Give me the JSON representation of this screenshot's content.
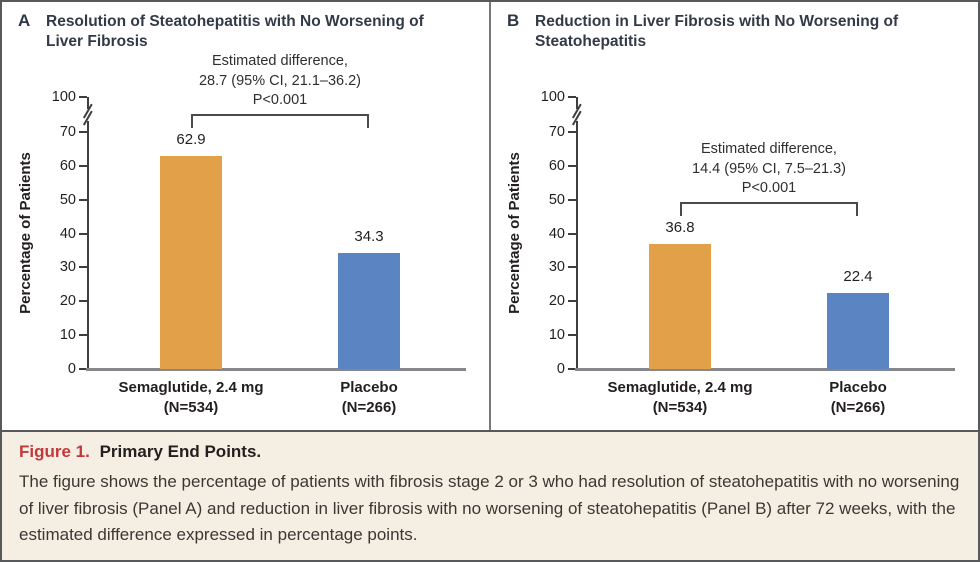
{
  "caption": {
    "label": "Figure 1.",
    "title": "Primary End Points.",
    "body": "The figure shows the percentage of patients with fibrosis stage 2 or 3 who had resolution of steatohepatitis with no worsening of liver fibrosis (Panel A) and reduction in liver fibrosis with no worsening of steatohepatitis (Panel B) after 72 weeks, with the estimated difference expressed in percentage points."
  },
  "colors": {
    "semaglutide_bar": "#e2a049",
    "placebo_bar": "#5b84c3",
    "caption_background": "#f5efe3",
    "figure_label_red": "#c2393b",
    "border_gray": "#58595b"
  },
  "chart_data": [
    {
      "type": "bar",
      "panel_label": "A",
      "title": "Resolution of Steatohepatitis with No Worsening of Liver Fibrosis",
      "categories": [
        [
          "Semaglutide, 2.4 mg",
          "(N=534)"
        ],
        [
          "Placebo",
          "(N=266)"
        ]
      ],
      "values": [
        62.9,
        34.3
      ],
      "value_labels": [
        "62.9",
        "34.3"
      ],
      "bar_colors": [
        "#e2a049",
        "#5b84c3"
      ],
      "ylabel": "Percentage of Patients",
      "yticks": [
        0,
        10,
        20,
        30,
        40,
        50,
        60,
        70,
        100
      ],
      "ylim": [
        0,
        100
      ],
      "axis_break_between": [
        70,
        100
      ],
      "grid": false,
      "annotation_lines": [
        "Estimated difference,",
        "28.7 (95% CI, 21.1–36.2)",
        "P<0.001"
      ]
    },
    {
      "type": "bar",
      "panel_label": "B",
      "title": "Reduction in Liver Fibrosis with No Worsening of Steatohepatitis",
      "categories": [
        [
          "Semaglutide, 2.4 mg",
          "(N=534)"
        ],
        [
          "Placebo",
          "(N=266)"
        ]
      ],
      "values": [
        36.8,
        22.4
      ],
      "value_labels": [
        "36.8",
        "22.4"
      ],
      "bar_colors": [
        "#e2a049",
        "#5b84c3"
      ],
      "ylabel": "Percentage of Patients",
      "yticks": [
        0,
        10,
        20,
        30,
        40,
        50,
        60,
        70,
        100
      ],
      "ylim": [
        0,
        100
      ],
      "axis_break_between": [
        70,
        100
      ],
      "grid": false,
      "annotation_lines": [
        "Estimated difference,",
        "14.4 (95% CI, 7.5–21.3)",
        "P<0.001"
      ]
    }
  ]
}
